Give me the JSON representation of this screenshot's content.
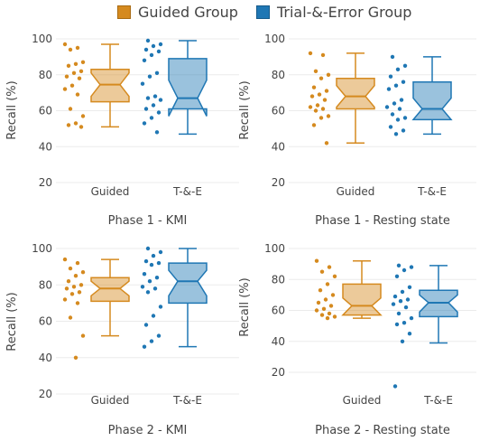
{
  "legend": {
    "items": [
      {
        "label": "Guided Group",
        "color": "#d58a1f"
      },
      {
        "label": "Trial-&-Error Group",
        "color": "#1f77b4"
      }
    ]
  },
  "chart_data": [
    {
      "type": "box",
      "title": "Phase 1 - KMI",
      "ylabel": "Recall (%)",
      "ylim": [
        20,
        100
      ],
      "yticks": [
        20,
        40,
        60,
        80,
        100
      ],
      "categories": [
        "Guided",
        "T-&-E"
      ],
      "series": [
        {
          "name": "Guided Group",
          "color": "#d58a1f",
          "min": 51,
          "q1": 65,
          "median": 74.5,
          "q3": 83,
          "max": 97,
          "notch": [
            68,
            81
          ],
          "points": [
            97,
            95,
            94,
            87,
            86,
            85,
            82,
            81,
            79,
            78,
            74,
            72,
            69,
            61,
            57,
            53,
            52,
            51
          ]
        },
        {
          "name": "Trial-&-Error Group",
          "color": "#1f77b4",
          "min": 47,
          "q1": 61,
          "median": 67,
          "q3": 89,
          "max": 99,
          "notch": [
            57,
            77
          ],
          "points": [
            99,
            97,
            96,
            94,
            93,
            91,
            88,
            81,
            79,
            75,
            68,
            67,
            66,
            63,
            61,
            59,
            56,
            53,
            48
          ]
        }
      ]
    },
    {
      "type": "box",
      "title": "Phase 1 - Resting state",
      "ylabel": "Recall (%)",
      "ylim": [
        20,
        100
      ],
      "yticks": [
        20,
        40,
        60,
        80,
        100
      ],
      "categories": [
        "Guided",
        "T-&-E"
      ],
      "series": [
        {
          "name": "Guided Group",
          "color": "#d58a1f",
          "min": 42,
          "q1": 61,
          "median": 68,
          "q3": 78,
          "max": 92,
          "notch": [
            62,
            74
          ],
          "points": [
            92,
            91,
            82,
            80,
            78,
            73,
            71,
            69,
            68,
            66,
            63,
            62,
            61,
            60,
            57,
            56,
            52,
            42
          ]
        },
        {
          "name": "Trial-&-Error Group",
          "color": "#1f77b4",
          "min": 47,
          "q1": 55,
          "median": 61,
          "q3": 76,
          "max": 90,
          "notch": [
            55,
            67
          ],
          "points": [
            90,
            85,
            83,
            79,
            76,
            74,
            72,
            66,
            64,
            62,
            61,
            58,
            56,
            55,
            51,
            49,
            47
          ]
        }
      ]
    },
    {
      "type": "box",
      "title": "Phase 2 - KMI",
      "ylabel": "Recall (%)",
      "ylim": [
        20,
        100
      ],
      "yticks": [
        20,
        40,
        60,
        80,
        100
      ],
      "categories": [
        "Guided",
        "T-&-E"
      ],
      "series": [
        {
          "name": "Guided Group",
          "color": "#d58a1f",
          "min": 52,
          "q1": 71,
          "median": 78,
          "q3": 84,
          "max": 94,
          "notch": [
            74,
            82
          ],
          "points": [
            94,
            92,
            89,
            87,
            85,
            82,
            80,
            79,
            78,
            76,
            75,
            72,
            70,
            62,
            52,
            40
          ]
        },
        {
          "name": "Trial-&-Error Group",
          "color": "#1f77b4",
          "min": 46,
          "q1": 70,
          "median": 82,
          "q3": 92,
          "max": 100,
          "notch": [
            74,
            88
          ],
          "points": [
            100,
            98,
            96,
            93,
            92,
            91,
            86,
            84,
            82,
            79,
            78,
            76,
            68,
            63,
            58,
            52,
            49,
            46
          ]
        }
      ]
    },
    {
      "type": "box",
      "title": "Phase 2 - Resting state",
      "ylabel": "Recall (%)",
      "ylim": [
        20,
        100
      ],
      "yticks": [
        20,
        40,
        60,
        80,
        100
      ],
      "categories": [
        "Guided",
        "T-&-E"
      ],
      "series": [
        {
          "name": "Guided Group",
          "color": "#d58a1f",
          "min": 55,
          "q1": 57,
          "median": 63,
          "q3": 77,
          "max": 92,
          "notch": [
            57,
            68
          ],
          "points": [
            92,
            88,
            85,
            82,
            77,
            73,
            70,
            67,
            65,
            63,
            61,
            60,
            58,
            57,
            56,
            55
          ]
        },
        {
          "name": "Trial-&-Error Group",
          "color": "#1f77b4",
          "min": 39,
          "q1": 56,
          "median": 65,
          "q3": 73,
          "max": 89,
          "notch": [
            59,
            70
          ],
          "points": [
            89,
            88,
            86,
            82,
            75,
            72,
            69,
            67,
            66,
            64,
            62,
            58,
            55,
            52,
            51,
            45,
            40,
            11
          ]
        }
      ]
    }
  ]
}
